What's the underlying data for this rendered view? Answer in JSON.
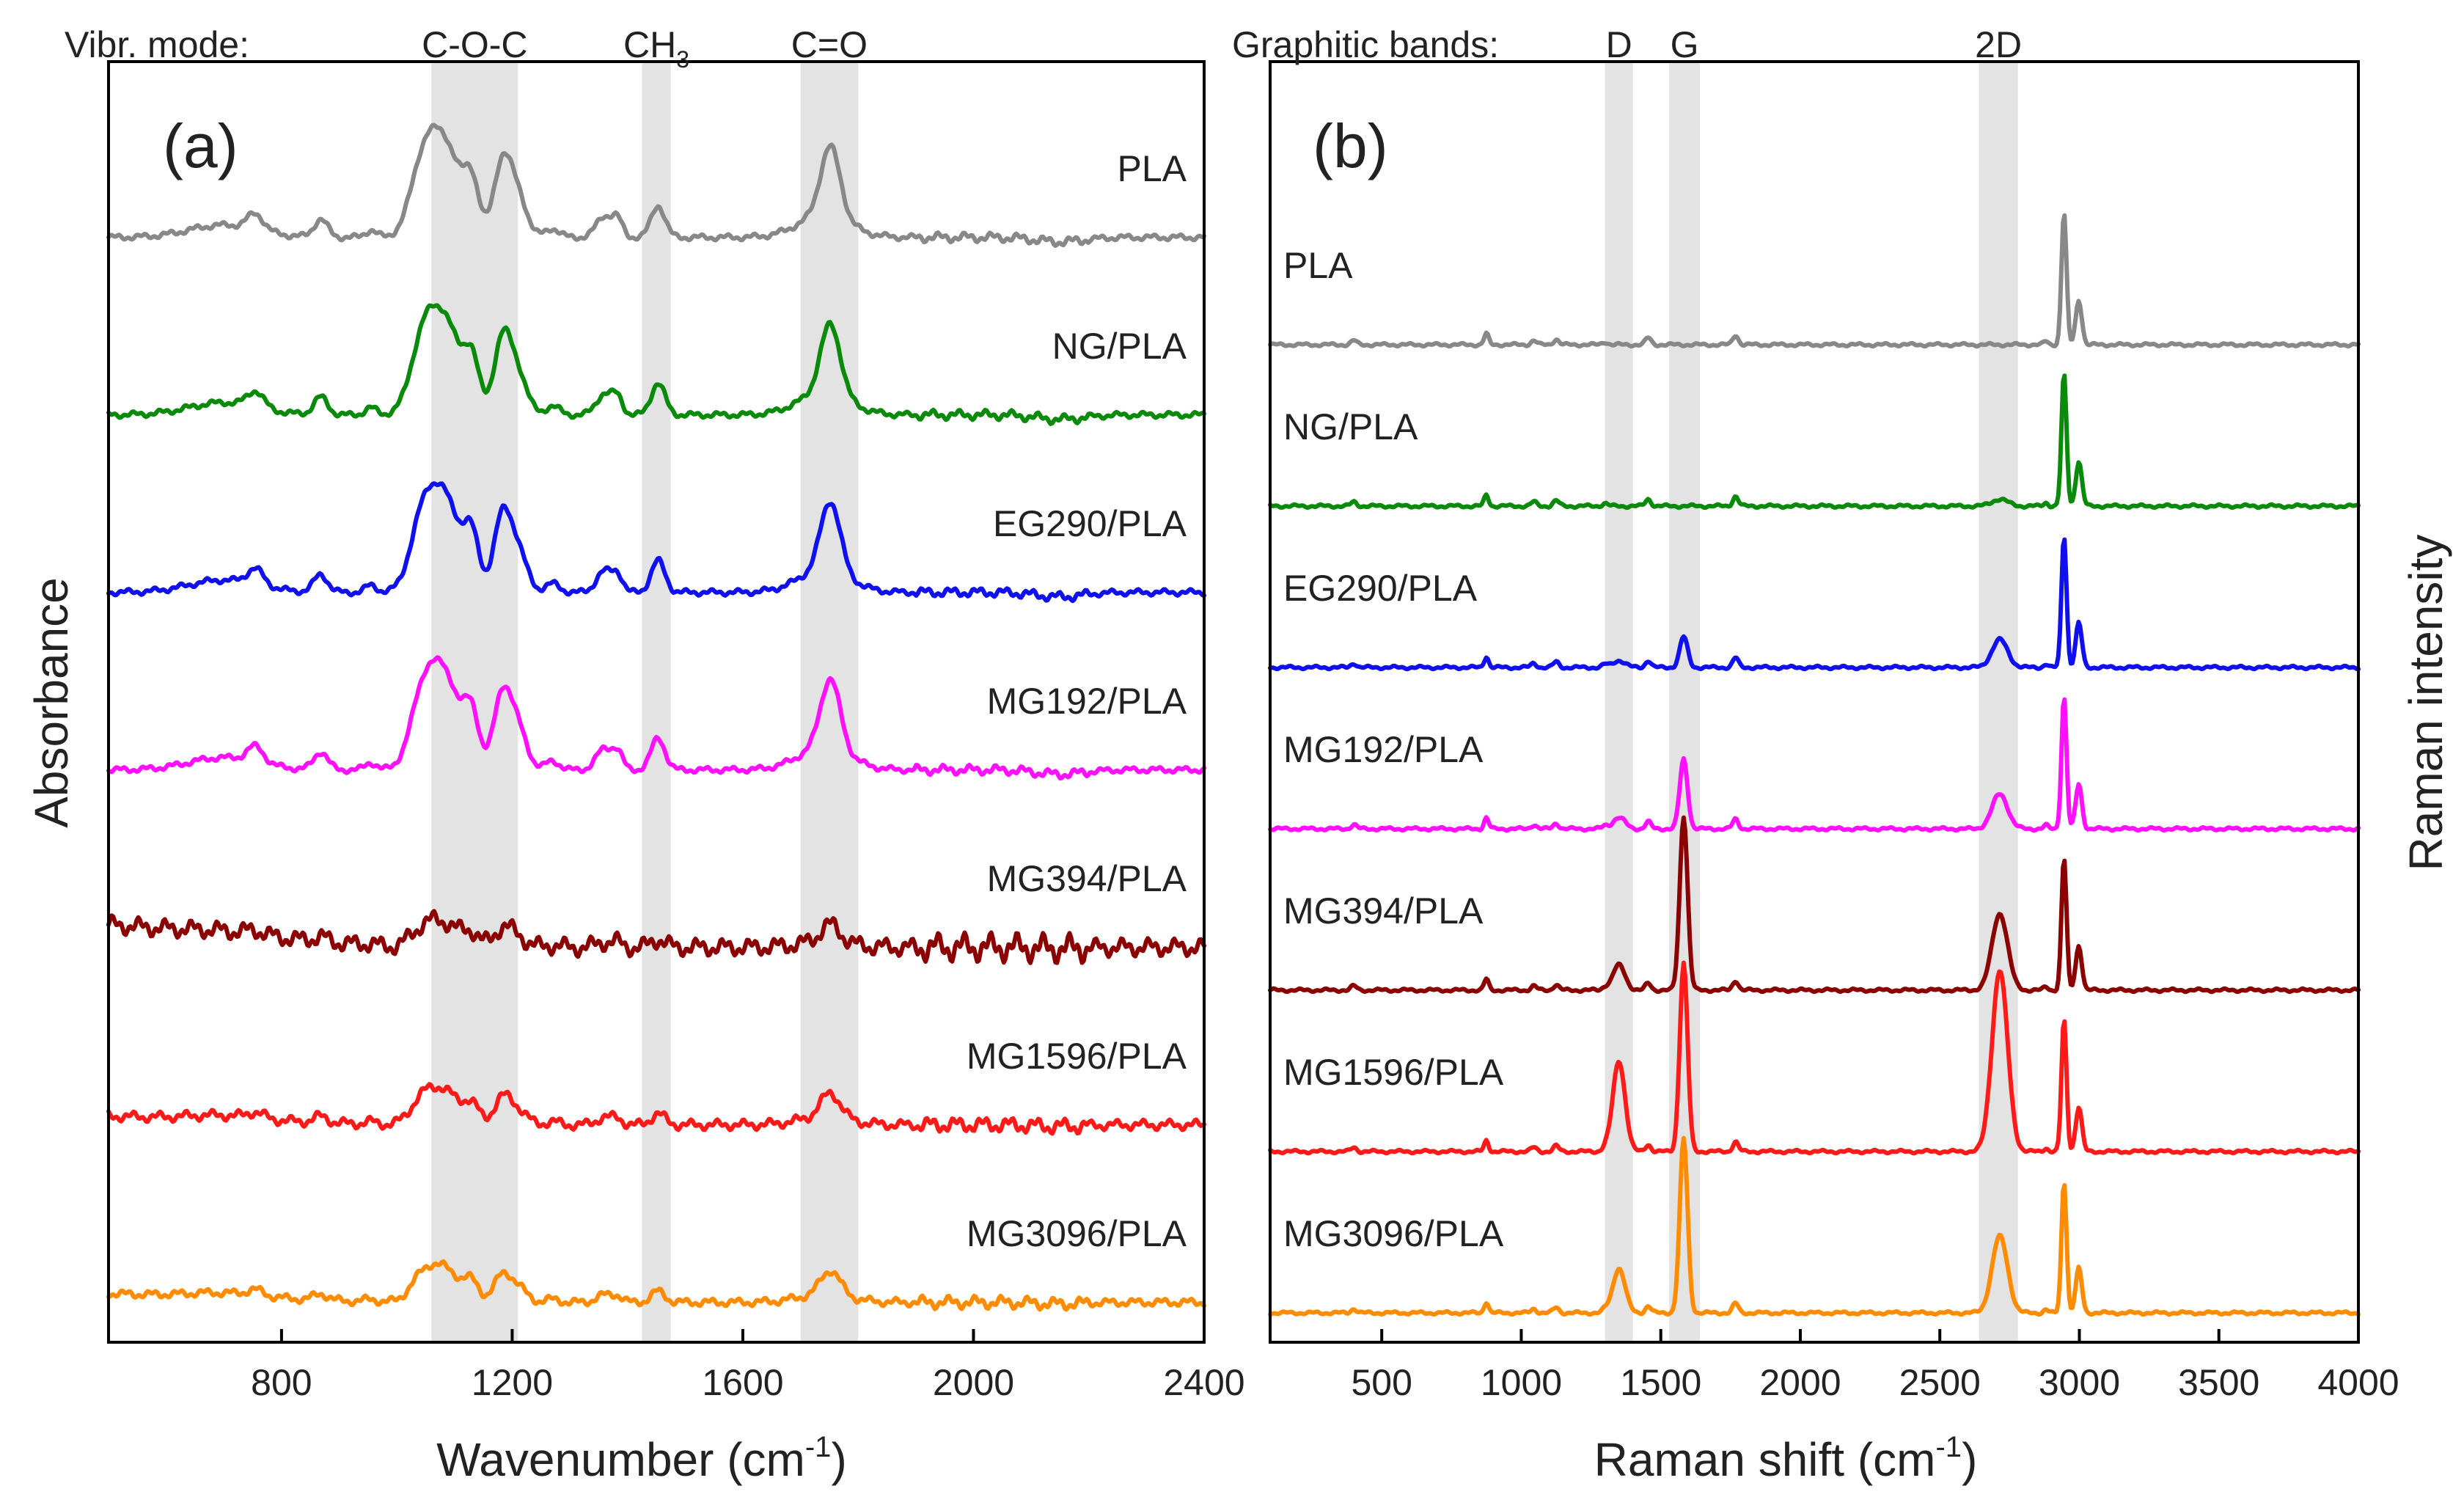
{
  "chart_data": [
    {
      "type": "line",
      "panel_label": "(a)",
      "header_label": "Vibr. mode:",
      "xlabel": "Wavenumber (cm",
      "xlabel_sup": "-1",
      "xlabel_close": ")",
      "ylabel": "Absorbance",
      "xlim": [
        500,
        2400
      ],
      "xticks": [
        "800",
        "1200",
        "1600",
        "2000",
        "2400"
      ],
      "xtick_values": [
        800,
        1200,
        1600,
        2000,
        2400
      ],
      "bands": [
        {
          "label": "C-O-C",
          "x0": 1060,
          "x1": 1210
        },
        {
          "label": "CH",
          "sub": "3",
          "x0": 1425,
          "x1": 1475
        },
        {
          "label": "C=O",
          "x0": 1700,
          "x1": 1800
        }
      ],
      "series": [
        {
          "name": "PLA",
          "color": "#888888",
          "offset": 6.0,
          "scale": 1.0,
          "noise": 0.03
        },
        {
          "name": "NG/PLA",
          "color": "#0a8a0a",
          "offset": 5.0,
          "scale": 1.0,
          "noise": 0.03
        },
        {
          "name": "EG290/PLA",
          "color": "#1010ee",
          "offset": 4.0,
          "scale": 1.0,
          "noise": 0.03
        },
        {
          "name": "MG192/PLA",
          "color": "#ff10ff",
          "offset": 3.0,
          "scale": 1.0,
          "noise": 0.03
        },
        {
          "name": "MG394/PLA",
          "color": "#8b0000",
          "offset": 2.0,
          "scale": 0.25,
          "noise": 0.09
        },
        {
          "name": "MG1596/PLA",
          "color": "#ff1a1a",
          "offset": 1.0,
          "scale": 0.35,
          "noise": 0.05
        },
        {
          "name": "MG3096/PLA",
          "color": "#ff8c00",
          "offset": 0.0,
          "scale": 0.35,
          "noise": 0.04
        }
      ]
    },
    {
      "type": "line",
      "panel_label": "(b)",
      "header_label": "Graphitic bands:",
      "xlabel": "Raman shift (cm",
      "xlabel_sup": "-1",
      "xlabel_close": ")",
      "ylabel": "Raman intensity",
      "xlim": [
        100,
        4000
      ],
      "xticks": [
        "500",
        "1000",
        "1500",
        "2000",
        "2500",
        "3000",
        "3500",
        "4000"
      ],
      "xtick_values": [
        500,
        1000,
        1500,
        2000,
        2500,
        3000,
        3500,
        4000
      ],
      "bands": [
        {
          "label": "D",
          "x0": 1300,
          "x1": 1400
        },
        {
          "label": "G",
          "x0": 1530,
          "x1": 1640
        },
        {
          "label": "2D",
          "x0": 2640,
          "x1": 2780
        }
      ],
      "series": [
        {
          "name": "PLA",
          "color": "#888888",
          "offset": 6.0,
          "D": 0.0,
          "G": 0.0,
          "twoD": 0.0
        },
        {
          "name": "NG/PLA",
          "color": "#0a8a0a",
          "offset": 5.0,
          "D": 0.0,
          "G": 0.0,
          "twoD": 0.05
        },
        {
          "name": "EG290/PLA",
          "color": "#1010ee",
          "offset": 4.0,
          "D": 0.05,
          "G": 0.22,
          "twoD": 0.2
        },
        {
          "name": "MG192/PLA",
          "color": "#ff10ff",
          "offset": 3.0,
          "D": 0.08,
          "G": 0.5,
          "twoD": 0.25
        },
        {
          "name": "MG394/PLA",
          "color": "#8b0000",
          "offset": 2.0,
          "D": 0.18,
          "G": 1.25,
          "twoD": 0.55
        },
        {
          "name": "MG1596/PLA",
          "color": "#ff1a1a",
          "offset": 1.0,
          "D": 0.65,
          "G": 1.35,
          "twoD": 1.3
        },
        {
          "name": "MG3096/PLA",
          "color": "#ff8c00",
          "offset": 0.0,
          "D": 0.32,
          "G": 1.25,
          "twoD": 0.55
        }
      ]
    }
  ]
}
